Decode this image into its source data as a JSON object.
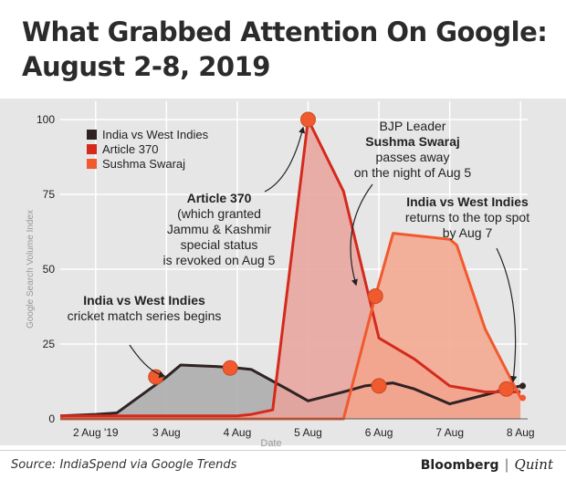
{
  "header": {
    "title_line1": "What Grabbed Attention On Google:",
    "title_line2": "August 2-8, 2019"
  },
  "footer": {
    "source": "Source: IndiaSpend via Google Trends",
    "brand_primary": "Bloomberg",
    "brand_separator": "|",
    "brand_secondary": "Quint"
  },
  "chart_data": {
    "type": "area",
    "title": "What Grabbed Attention On Google: August 2-8, 2019",
    "xlabel": "Date",
    "ylabel": "Google Search Volume Index",
    "ylim": [
      0,
      100
    ],
    "xlim": [
      1.5,
      8.1
    ],
    "yticks": [
      0,
      25,
      50,
      75,
      100
    ],
    "xticks": [
      2,
      3,
      4,
      5,
      6,
      7,
      8
    ],
    "xtick_labels": [
      "2 Aug '19",
      "3 Aug",
      "4 Aug",
      "5 Aug",
      "6 Aug",
      "7 Aug",
      "8 Aug"
    ],
    "series": [
      {
        "name": "India vs West Indies",
        "color": "#2f2323",
        "fill": "#a9a9a9",
        "x": [
          1.5,
          2.0,
          2.3,
          3.0,
          3.2,
          3.7,
          4.0,
          4.2,
          4.7,
          5.0,
          5.5,
          5.8,
          6.2,
          6.5,
          6.8,
          7.0,
          7.5,
          7.8,
          8.0
        ],
        "values": [
          1,
          1.5,
          2,
          14,
          18,
          17.5,
          17,
          16.5,
          10,
          6,
          9,
          11,
          12,
          10,
          7,
          5,
          8,
          10,
          11
        ]
      },
      {
        "name": "Article 370",
        "color": "#d42a1c",
        "fill": "#e8a29a",
        "x": [
          1.5,
          2.0,
          3.0,
          4.0,
          4.2,
          4.5,
          5.0,
          5.5,
          6.0,
          6.5,
          7.0,
          7.5,
          8.0
        ],
        "values": [
          1,
          1,
          1,
          1,
          1.5,
          3,
          100,
          76,
          27,
          20,
          11,
          9,
          9
        ]
      },
      {
        "name": "Sushma Swaraj",
        "color": "#f05a2e",
        "fill": "#f3a48c",
        "x": [
          1.5,
          5.0,
          5.5,
          5.95,
          6.2,
          7.0,
          7.1,
          7.5,
          8.0
        ],
        "values": [
          0,
          0,
          0,
          41,
          62,
          60,
          58,
          30,
          7
        ]
      }
    ],
    "markers": [
      {
        "series": "India vs West Indies",
        "x": 2.85,
        "y": 14,
        "color": "#f05a2e"
      },
      {
        "series": "India vs West Indies",
        "x": 3.9,
        "y": 17,
        "color": "#f05a2e"
      },
      {
        "series": "India vs West Indies",
        "x": 6.0,
        "y": 11,
        "color": "#f05a2e"
      },
      {
        "series": "India vs West Indies",
        "x": 7.8,
        "y": 10,
        "color": "#f05a2e"
      },
      {
        "series": "Article 370",
        "x": 5.0,
        "y": 100,
        "color": "#f05a2e"
      },
      {
        "series": "Sushma Swaraj",
        "x": 5.95,
        "y": 41,
        "color": "#f05a2e"
      }
    ],
    "annotations": [
      {
        "id": "article370",
        "bold": "Article 370",
        "lines": [
          "(which granted",
          "Jammu & Kashmir",
          "special status",
          "is revoked on Aug 5"
        ]
      },
      {
        "id": "sushma",
        "lines_before": [
          "BJP Leader"
        ],
        "bold": "Sushma Swaraj",
        "lines": [
          "passes away",
          "on the night of Aug 5"
        ]
      },
      {
        "id": "indiawi_top",
        "bold": "India vs West Indies",
        "lines": [
          "returns to the top spot",
          "by Aug 7"
        ]
      },
      {
        "id": "indiawi_start",
        "bold": "India vs West Indies",
        "lines": [
          "cricket match series begins"
        ]
      }
    ]
  }
}
